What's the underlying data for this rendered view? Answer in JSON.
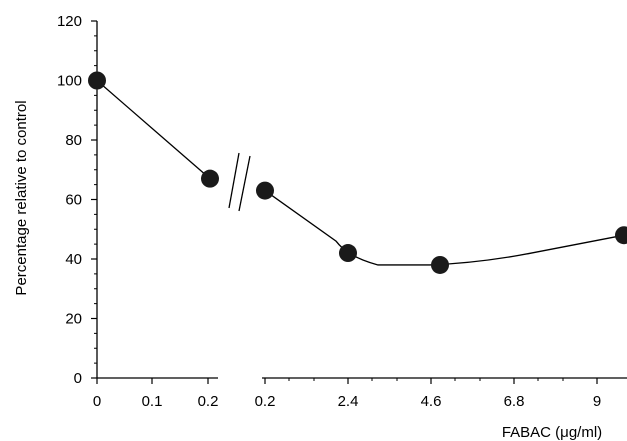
{
  "chart_data": {
    "type": "scatter",
    "title": "",
    "xlabel": "FABAC (μg/ml)",
    "ylabel": "Percentage relative to control",
    "ylim": [
      0,
      120
    ],
    "y_ticks": [
      0,
      20,
      40,
      60,
      80,
      100,
      120
    ],
    "x_ticks": [
      "0",
      "0.1",
      "0.2",
      "0.2",
      "2.4",
      "4.6",
      "6.8",
      "9"
    ],
    "axis_break": "between first 0.2 and second 0.2",
    "grid": false,
    "legend": "none",
    "series": [
      {
        "points": [
          {
            "x": "0",
            "y": 100
          },
          {
            "x": "0.2",
            "y": 67
          }
        ]
      },
      {
        "points": [
          {
            "x": "0.2",
            "y": 63
          },
          {
            "x": "2.4",
            "y": 42
          },
          {
            "x": "4.6",
            "y": 38
          },
          {
            "x": "9",
            "y": 48
          }
        ]
      }
    ],
    "colors": {
      "marker": "#1a1a1a",
      "line": "#000000"
    }
  }
}
